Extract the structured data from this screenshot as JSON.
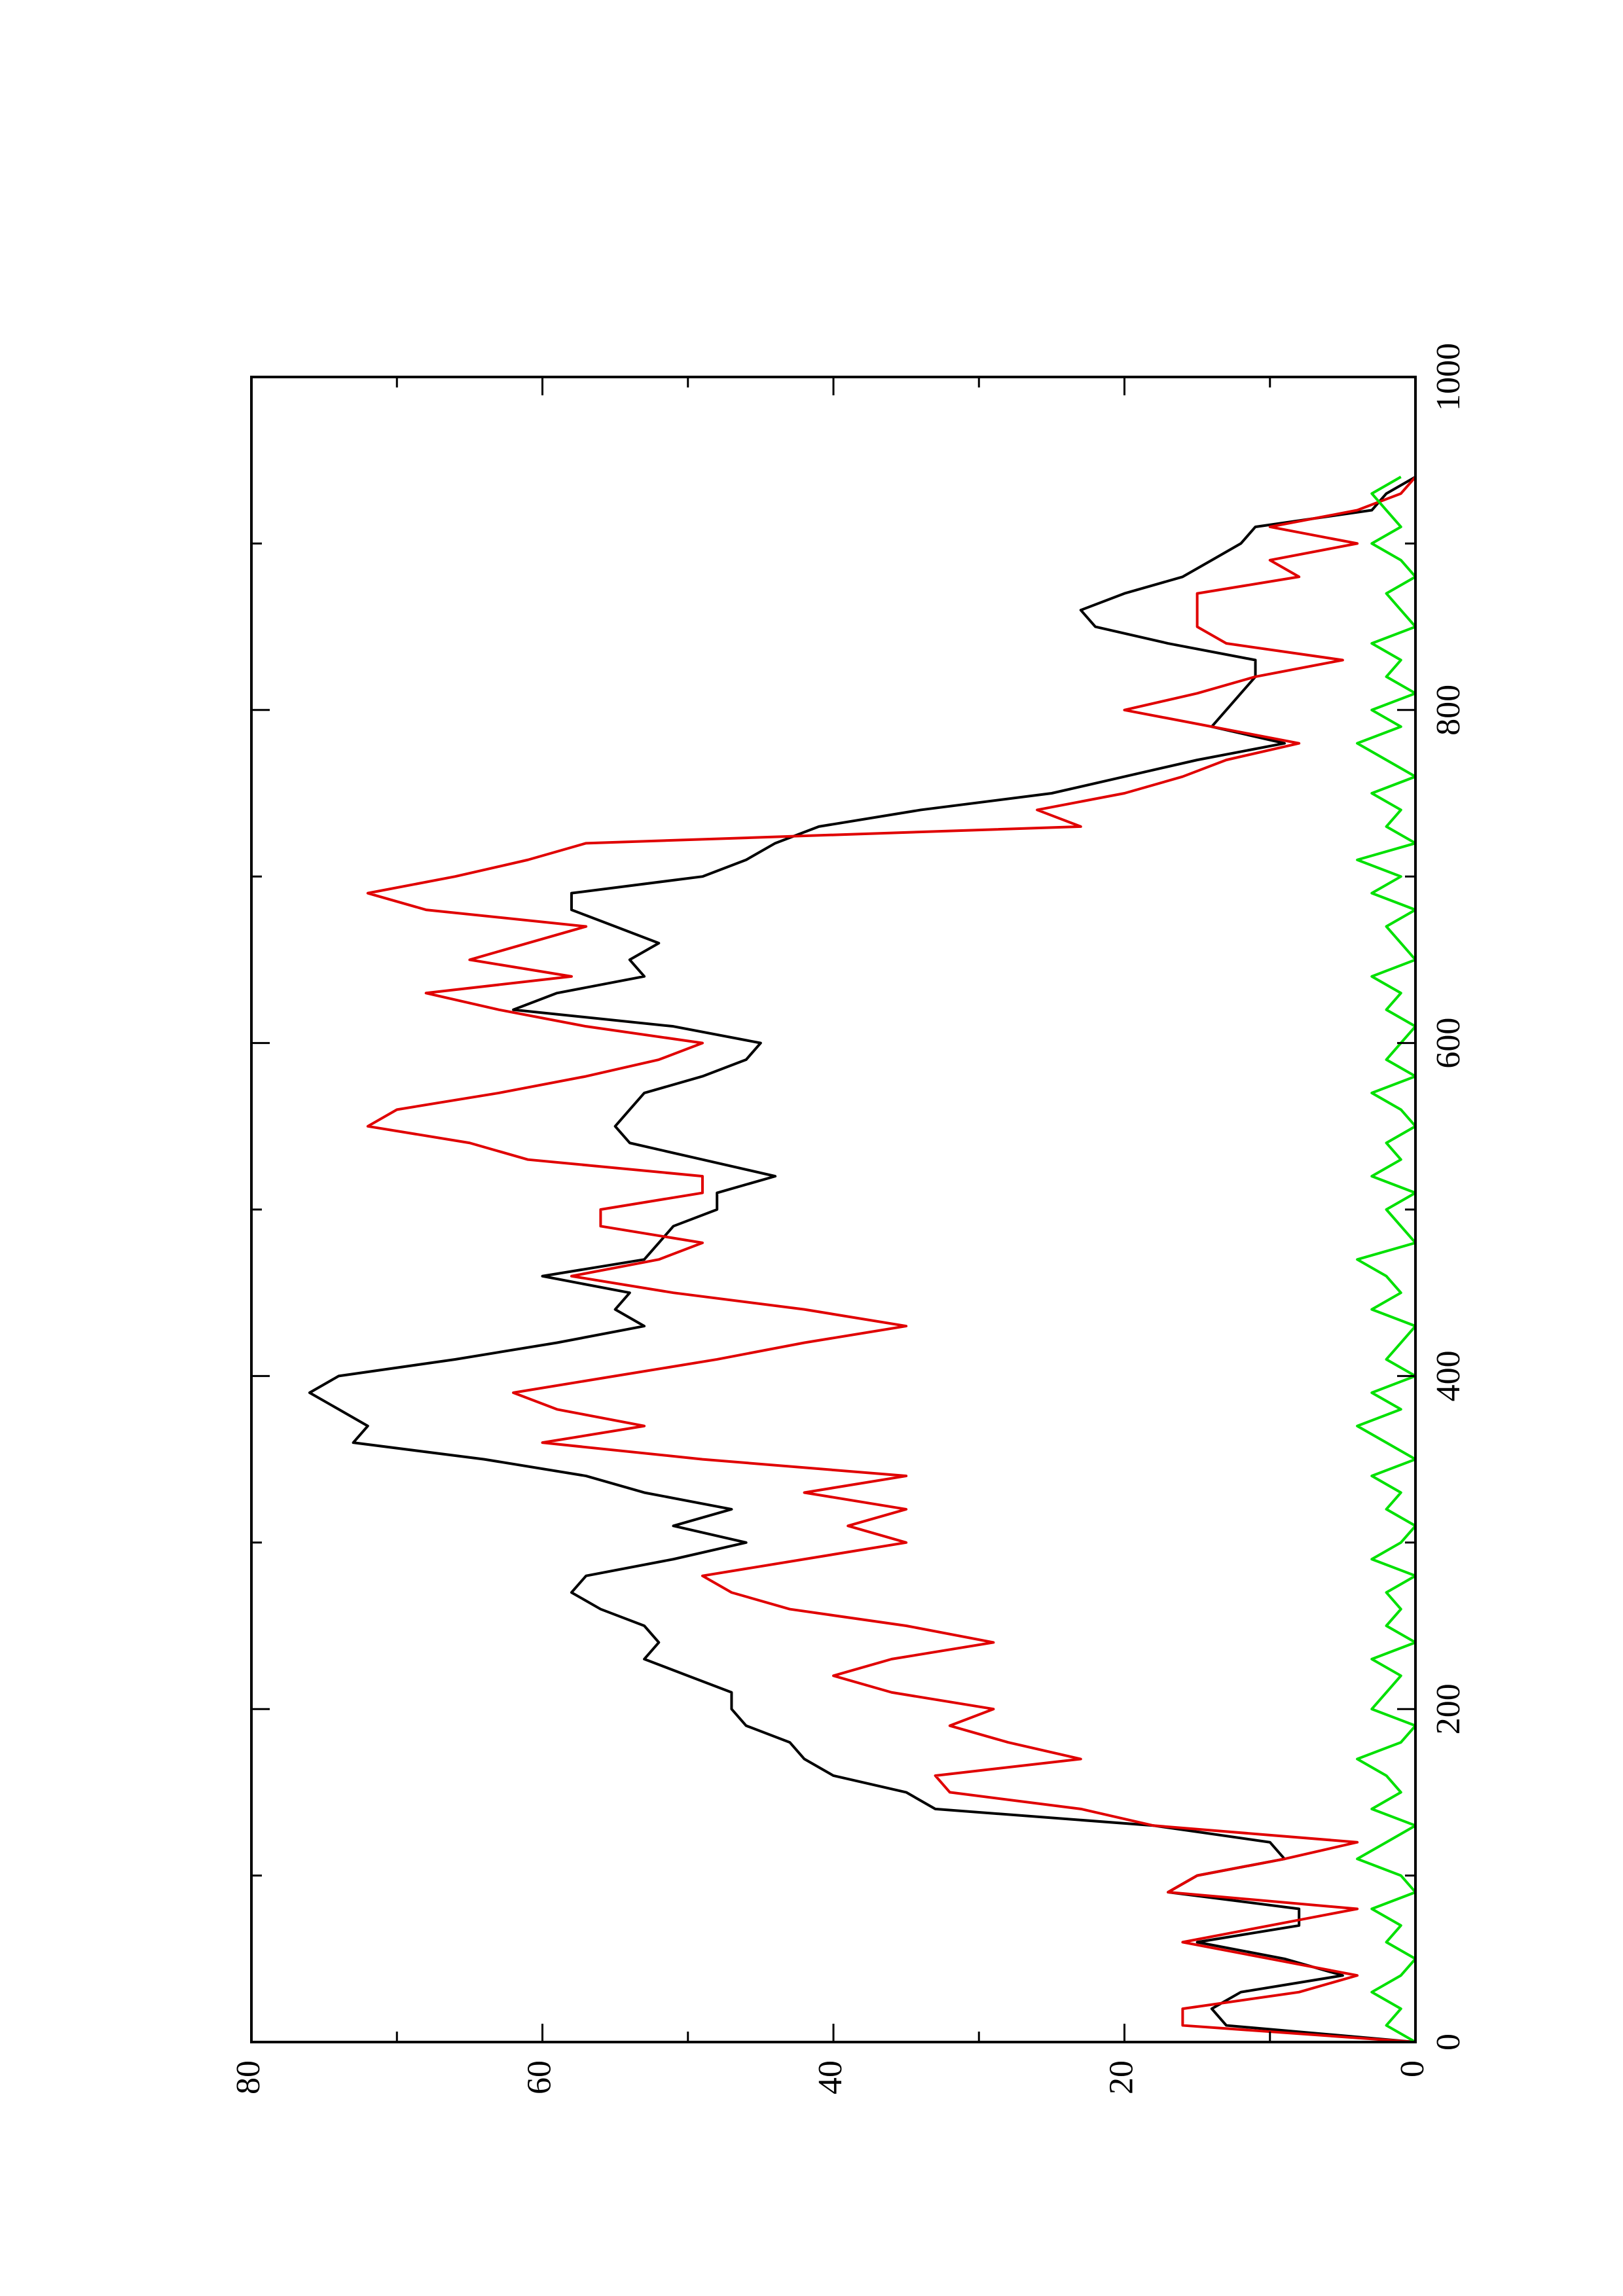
{
  "chart_data": {
    "type": "line",
    "x": [
      0,
      10,
      20,
      30,
      40,
      50,
      60,
      70,
      80,
      90,
      100,
      110,
      120,
      130,
      140,
      150,
      160,
      170,
      180,
      190,
      200,
      210,
      220,
      230,
      240,
      250,
      260,
      270,
      280,
      290,
      300,
      310,
      320,
      330,
      340,
      350,
      360,
      370,
      380,
      390,
      400,
      410,
      420,
      430,
      440,
      450,
      460,
      470,
      480,
      490,
      500,
      510,
      520,
      530,
      540,
      550,
      560,
      570,
      580,
      590,
      600,
      610,
      620,
      630,
      640,
      650,
      660,
      670,
      680,
      690,
      700,
      710,
      720,
      730,
      740,
      750,
      760,
      770,
      780,
      790,
      800,
      810,
      820,
      830,
      840,
      850,
      860,
      870,
      880,
      890,
      900,
      910,
      920,
      930,
      940
    ],
    "series": [
      {
        "color": "#000000",
        "values": [
          0,
          13,
          14,
          12,
          5,
          9,
          15,
          8,
          8,
          17,
          15,
          9,
          10,
          18,
          33,
          35,
          40,
          42,
          43,
          46,
          47,
          47,
          50,
          53,
          52,
          53,
          56,
          58,
          57,
          51,
          46,
          51,
          47,
          53,
          57,
          64,
          73,
          72,
          74,
          76,
          74,
          66,
          59,
          53,
          55,
          54,
          60,
          53,
          52,
          51,
          48,
          48,
          44,
          49,
          54,
          55,
          54,
          53,
          49,
          46,
          45,
          51,
          62,
          59,
          53,
          54,
          52,
          55,
          58,
          58,
          49,
          46,
          44,
          41,
          34,
          25,
          20,
          15,
          9,
          14,
          13,
          12,
          11,
          11,
          17,
          22,
          23,
          20,
          16,
          14,
          12,
          11,
          3,
          2,
          0
        ]
      },
      {
        "color": "#e00000",
        "values": [
          0,
          16,
          16,
          8,
          4,
          10,
          16,
          10,
          4,
          17,
          15,
          9,
          4,
          18,
          23,
          32,
          33,
          23,
          28,
          32,
          29,
          36,
          40,
          36,
          29,
          35,
          43,
          47,
          49,
          42,
          35,
          39,
          35,
          42,
          35,
          49,
          60,
          53,
          59,
          62,
          55,
          48,
          42,
          35,
          42,
          51,
          58,
          52,
          49,
          56,
          56,
          49,
          49,
          61,
          65,
          72,
          70,
          63,
          57,
          52,
          49,
          57,
          63,
          68,
          58,
          65,
          61,
          57,
          68,
          72,
          66,
          61,
          57,
          23,
          26,
          20,
          16,
          13,
          8,
          14,
          20,
          15,
          11,
          5,
          13,
          15,
          15,
          15,
          8,
          10,
          4,
          10,
          4,
          1,
          0
        ]
      },
      {
        "color": "#00e000",
        "values": [
          0,
          2,
          1,
          3,
          1,
          0,
          2,
          1,
          3,
          0,
          1,
          4,
          2,
          0,
          3,
          1,
          2,
          4,
          1,
          0,
          3,
          2,
          1,
          3,
          0,
          2,
          1,
          2,
          0,
          3,
          1,
          0,
          2,
          1,
          3,
          0,
          2,
          4,
          1,
          3,
          0,
          2,
          1,
          0,
          3,
          1,
          2,
          4,
          0,
          1,
          2,
          0,
          3,
          1,
          2,
          0,
          1,
          3,
          0,
          2,
          1,
          0,
          2,
          1,
          3,
          0,
          1,
          2,
          0,
          3,
          1,
          4,
          0,
          2,
          1,
          3,
          0,
          2,
          4,
          1,
          3,
          0,
          2,
          1,
          3,
          0,
          1,
          2,
          0,
          1,
          3,
          1,
          2,
          3,
          1
        ]
      }
    ],
    "xlim": [
      0,
      1000
    ],
    "xticks": [
      0,
      200,
      400,
      600,
      800,
      1000
    ],
    "xminorticks": [
      100,
      300,
      500,
      700,
      900
    ],
    "ylim": [
      0,
      80
    ],
    "yticks": [
      0,
      20,
      40,
      60,
      80
    ],
    "yminorticks": [
      10,
      30,
      50,
      70
    ],
    "rotated": true
  }
}
